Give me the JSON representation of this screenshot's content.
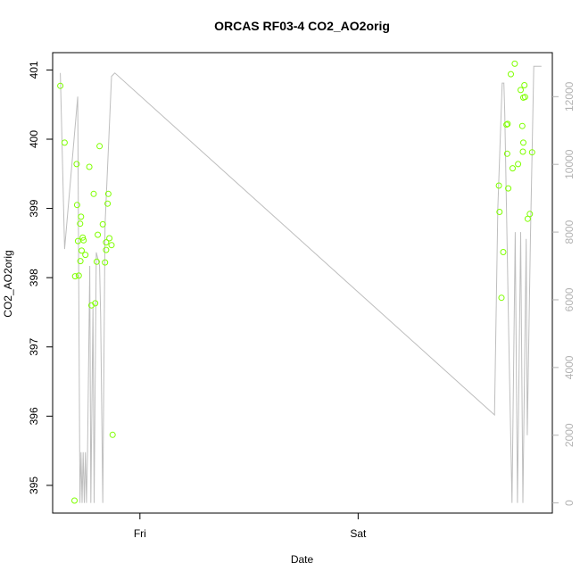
{
  "chart_data": {
    "type": "scatter",
    "title": "ORCAS RF03-4 CO2_AO2orig",
    "xlabel": "Date",
    "ylabel": "CO2_AO2orig",
    "x_ticks": [
      "Fri",
      "Sat"
    ],
    "x_tick_positions_days": [
      0,
      1
    ],
    "xlim_days": [
      -0.4,
      1.89
    ],
    "ylim_left": [
      394.6,
      401.25
    ],
    "y_ticks_left": [
      "395",
      "396",
      "397",
      "398",
      "399",
      "400",
      "401"
    ],
    "y_tick_values_left": [
      395,
      396,
      397,
      398,
      399,
      400,
      401
    ],
    "ylim_right": [
      -300,
      13300
    ],
    "y_ticks_right": [
      "0",
      "2000",
      "4000",
      "6000",
      "8000",
      "10000",
      "12000"
    ],
    "y_tick_values_right": [
      0,
      2000,
      4000,
      6000,
      8000,
      10000,
      12000
    ],
    "grid": false,
    "series": [
      {
        "style": "points",
        "color": "#7fff00",
        "axis": "left",
        "points": [
          [
            -0.365,
            400.77
          ],
          [
            -0.345,
            399.95
          ],
          [
            -0.3,
            394.78
          ],
          [
            -0.297,
            398.02
          ],
          [
            -0.29,
            399.64
          ],
          [
            -0.288,
            399.05
          ],
          [
            -0.284,
            398.53
          ],
          [
            -0.28,
            398.03
          ],
          [
            -0.274,
            398.78
          ],
          [
            -0.273,
            398.24
          ],
          [
            -0.27,
            398.88
          ],
          [
            -0.267,
            398.39
          ],
          [
            -0.262,
            398.58
          ],
          [
            -0.258,
            398.54
          ],
          [
            -0.25,
            398.33
          ],
          [
            -0.232,
            399.6
          ],
          [
            -0.222,
            397.6
          ],
          [
            -0.212,
            399.21
          ],
          [
            -0.205,
            397.63
          ],
          [
            -0.198,
            398.23
          ],
          [
            -0.193,
            398.62
          ],
          [
            -0.185,
            399.9
          ],
          [
            -0.17,
            398.77
          ],
          [
            -0.16,
            398.22
          ],
          [
            -0.155,
            398.51
          ],
          [
            -0.155,
            398.4
          ],
          [
            -0.148,
            399.07
          ],
          [
            -0.145,
            399.21
          ],
          [
            -0.14,
            398.57
          ],
          [
            -0.13,
            398.47
          ],
          [
            -0.125,
            395.73
          ],
          [
            1.645,
            399.33
          ],
          [
            1.648,
            398.95
          ],
          [
            1.657,
            397.71
          ],
          [
            1.665,
            398.37
          ],
          [
            1.68,
            400.21
          ],
          [
            1.683,
            399.79
          ],
          [
            1.685,
            400.22
          ],
          [
            1.688,
            399.29
          ],
          [
            1.7,
            400.94
          ],
          [
            1.708,
            399.58
          ],
          [
            1.718,
            401.09
          ],
          [
            1.733,
            399.64
          ],
          [
            1.745,
            400.71
          ],
          [
            1.752,
            400.19
          ],
          [
            1.755,
            399.82
          ],
          [
            1.757,
            399.95
          ],
          [
            1.757,
            400.6
          ],
          [
            1.762,
            400.78
          ],
          [
            1.765,
            400.61
          ],
          [
            1.777,
            398.85
          ],
          [
            1.787,
            398.92
          ],
          [
            1.797,
            399.81
          ]
        ]
      },
      {
        "style": "line",
        "color": "#bebebe",
        "axis": "right",
        "points": [
          [
            -0.365,
            12700
          ],
          [
            -0.345,
            7500
          ],
          [
            -0.285,
            12000
          ],
          [
            -0.275,
            0
          ],
          [
            -0.27,
            1500
          ],
          [
            -0.265,
            0
          ],
          [
            -0.26,
            1500
          ],
          [
            -0.255,
            0
          ],
          [
            -0.25,
            1500
          ],
          [
            -0.245,
            0
          ],
          [
            -0.24,
            1500
          ],
          [
            -0.23,
            7000
          ],
          [
            -0.225,
            0
          ],
          [
            -0.215,
            5800
          ],
          [
            -0.21,
            0
          ],
          [
            -0.2,
            7400
          ],
          [
            -0.185,
            7000
          ],
          [
            -0.18,
            5500
          ],
          [
            -0.17,
            0
          ],
          [
            -0.16,
            8200
          ],
          [
            -0.13,
            12600
          ],
          [
            -0.115,
            12700
          ],
          [
            1.625,
            2600
          ],
          [
            1.64,
            8700
          ],
          [
            1.66,
            12400
          ],
          [
            1.668,
            12400
          ],
          [
            1.672,
            11500
          ],
          [
            1.69,
            5000
          ],
          [
            1.705,
            0
          ],
          [
            1.72,
            8000
          ],
          [
            1.73,
            0
          ],
          [
            1.745,
            8000
          ],
          [
            1.755,
            0
          ],
          [
            1.77,
            7800
          ],
          [
            1.775,
            2000
          ],
          [
            1.79,
            7900
          ],
          [
            1.805,
            12900
          ],
          [
            1.84,
            12900
          ]
        ]
      }
    ]
  }
}
